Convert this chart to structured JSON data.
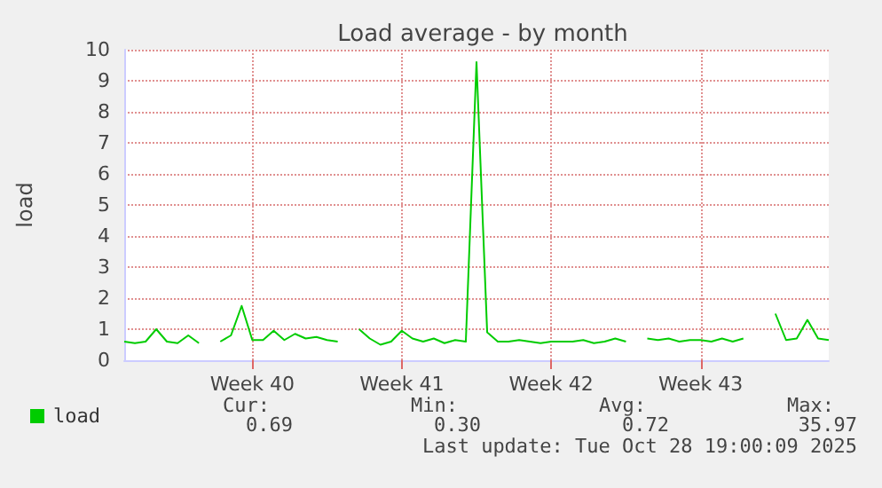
{
  "chart_data": {
    "type": "line",
    "title": "Load average - by month",
    "ylabel": "load",
    "categories": [
      null,
      null,
      null,
      null,
      null,
      null,
      null,
      null,
      null,
      null,
      null,
      null,
      "Week 40",
      null,
      null,
      null,
      null,
      null,
      null,
      null,
      null,
      null,
      null,
      null,
      null,
      null,
      "Week 41",
      null,
      null,
      null,
      null,
      null,
      null,
      null,
      null,
      null,
      null,
      null,
      null,
      null,
      "Week 42",
      null,
      null,
      null,
      null,
      null,
      null,
      null,
      null,
      null,
      null,
      null,
      null,
      null,
      "Week 43",
      null,
      null,
      null,
      null,
      null,
      null,
      null,
      null,
      null,
      null,
      null,
      null
    ],
    "series": [
      {
        "name": "load",
        "color": "#00cc00",
        "values": [
          0.6,
          0.55,
          0.6,
          1.0,
          0.6,
          0.55,
          0.8,
          0.55,
          null,
          0.6,
          0.8,
          1.75,
          0.65,
          0.65,
          0.95,
          0.65,
          0.85,
          0.7,
          0.75,
          0.65,
          0.6,
          null,
          1.0,
          0.7,
          0.5,
          0.6,
          0.95,
          0.7,
          0.6,
          0.7,
          0.55,
          0.65,
          0.6,
          9.6,
          0.9,
          0.6,
          0.6,
          0.65,
          0.6,
          0.55,
          0.6,
          0.6,
          0.6,
          0.65,
          0.55,
          0.6,
          0.7,
          0.6,
          null,
          0.7,
          0.65,
          0.7,
          0.6,
          0.65,
          0.65,
          0.6,
          0.7,
          0.6,
          0.7,
          null,
          null,
          1.5,
          0.65,
          0.7,
          1.3,
          0.7,
          0.65
        ]
      }
    ],
    "ylim": [
      0,
      10
    ],
    "yticks": [
      0,
      1,
      2,
      3,
      4,
      5,
      6,
      7,
      8,
      9,
      10
    ],
    "grid": true,
    "legend": "bottom left",
    "marker": "none",
    "line_style": "solid",
    "annotations": [
      "Cur:",
      "Min:",
      "Avg:",
      "Max:",
      "0.69",
      "0.30",
      "0.72",
      "35.97",
      "Last update: Tue Oct 28 19:00:09 2025"
    ]
  }
}
